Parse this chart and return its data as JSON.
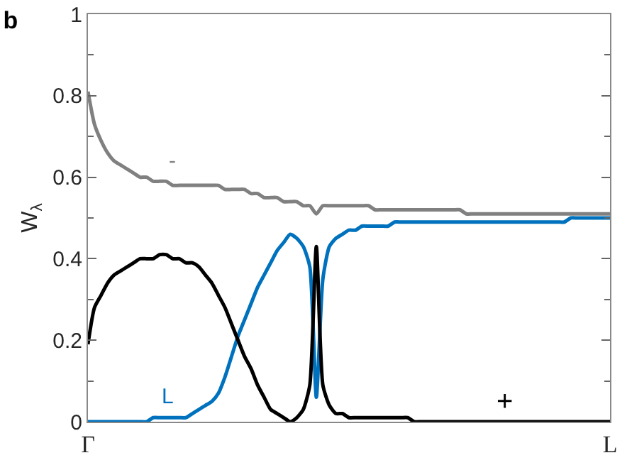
{
  "chart_data": {
    "type": "line",
    "title": "b",
    "ylabel": "W$_{λ}$",
    "categories": [
      "Γ",
      null,
      null,
      null,
      null,
      null,
      null,
      null,
      null,
      null,
      null,
      null,
      null,
      null,
      null,
      null,
      null,
      null,
      null,
      null,
      null,
      null,
      null,
      null,
      null,
      null,
      null,
      null,
      null,
      null,
      null,
      null,
      null,
      null,
      null,
      null,
      null,
      null,
      null,
      null,
      null,
      null,
      null,
      null,
      null,
      null,
      null,
      null,
      null,
      null,
      null,
      null,
      null,
      null,
      null,
      null,
      null,
      null,
      null,
      null,
      null,
      null,
      null,
      null,
      null,
      null,
      null,
      null,
      null,
      null,
      null,
      null,
      null,
      null,
      null,
      null,
      null,
      null,
      null,
      null,
      "L"
    ],
    "ylim": [
      0,
      1
    ],
    "yticks": [
      0,
      0.2,
      0.4,
      0.6,
      0.8,
      1
    ],
    "grid": false,
    "legend": false,
    "marker": "none",
    "line_style": "solid",
    "series": [
      {
        "name": "-",
        "color": "#808080",
        "values": [
          0.81,
          0.73,
          0.69,
          0.66,
          0.64,
          0.63,
          0.62,
          0.61,
          0.6,
          0.6,
          0.59,
          0.59,
          0.59,
          0.58,
          0.58,
          0.58,
          0.58,
          0.58,
          0.58,
          0.58,
          0.58,
          0.57,
          0.57,
          0.57,
          0.57,
          0.56,
          0.56,
          0.55,
          0.55,
          0.55,
          0.54,
          0.54,
          0.54,
          0.53,
          0.53,
          0.51,
          0.53,
          0.53,
          0.53,
          0.53,
          0.53,
          0.53,
          0.53,
          0.53,
          0.52,
          0.52,
          0.52,
          0.52,
          0.52,
          0.52,
          0.52,
          0.52,
          0.52,
          0.52,
          0.52,
          0.52,
          0.52,
          0.52,
          0.51,
          0.51,
          0.51,
          0.51,
          0.51,
          0.51,
          0.51,
          0.51,
          0.51,
          0.51,
          0.51,
          0.51,
          0.51,
          0.51,
          0.51,
          0.51,
          0.51,
          0.51,
          0.51,
          0.51,
          0.51,
          0.51,
          0.51
        ]
      },
      {
        "name": "L",
        "color": "#0072bd",
        "values": [
          0,
          0,
          0,
          0,
          0,
          0,
          0,
          0,
          0,
          0,
          0.01,
          0.01,
          0.01,
          0.01,
          0.01,
          0.01,
          0.02,
          0.03,
          0.04,
          0.05,
          0.07,
          0.11,
          0.16,
          0.21,
          0.25,
          0.29,
          0.33,
          0.36,
          0.39,
          0.42,
          0.44,
          0.46,
          0.45,
          0.43,
          0.38,
          0.06,
          0.35,
          0.43,
          0.45,
          0.46,
          0.47,
          0.47,
          0.48,
          0.48,
          0.48,
          0.48,
          0.48,
          0.49,
          0.49,
          0.49,
          0.49,
          0.49,
          0.49,
          0.49,
          0.49,
          0.49,
          0.49,
          0.49,
          0.49,
          0.49,
          0.49,
          0.49,
          0.49,
          0.49,
          0.49,
          0.49,
          0.49,
          0.49,
          0.49,
          0.49,
          0.49,
          0.49,
          0.49,
          0.49,
          0.5,
          0.5,
          0.5,
          0.5,
          0.5,
          0.5,
          0.5
        ]
      },
      {
        "name": "+",
        "color": "#000000",
        "values": [
          0.19,
          0.28,
          0.31,
          0.34,
          0.36,
          0.37,
          0.38,
          0.39,
          0.4,
          0.4,
          0.4,
          0.41,
          0.41,
          0.4,
          0.4,
          0.39,
          0.39,
          0.38,
          0.36,
          0.34,
          0.31,
          0.28,
          0.24,
          0.2,
          0.16,
          0.13,
          0.09,
          0.06,
          0.03,
          0.02,
          0.01,
          0,
          0.01,
          0.03,
          0.09,
          0.43,
          0.09,
          0.04,
          0.02,
          0.02,
          0.01,
          0.01,
          0.01,
          0.01,
          0.01,
          0.01,
          0.01,
          0.01,
          0.01,
          0.01,
          0,
          0,
          0,
          0,
          0,
          0,
          0,
          0,
          0,
          0,
          0,
          0,
          0,
          0,
          0,
          0,
          0,
          0,
          0,
          0,
          0,
          0,
          0,
          0,
          0,
          0,
          0,
          0,
          0,
          0,
          0
        ]
      }
    ]
  }
}
